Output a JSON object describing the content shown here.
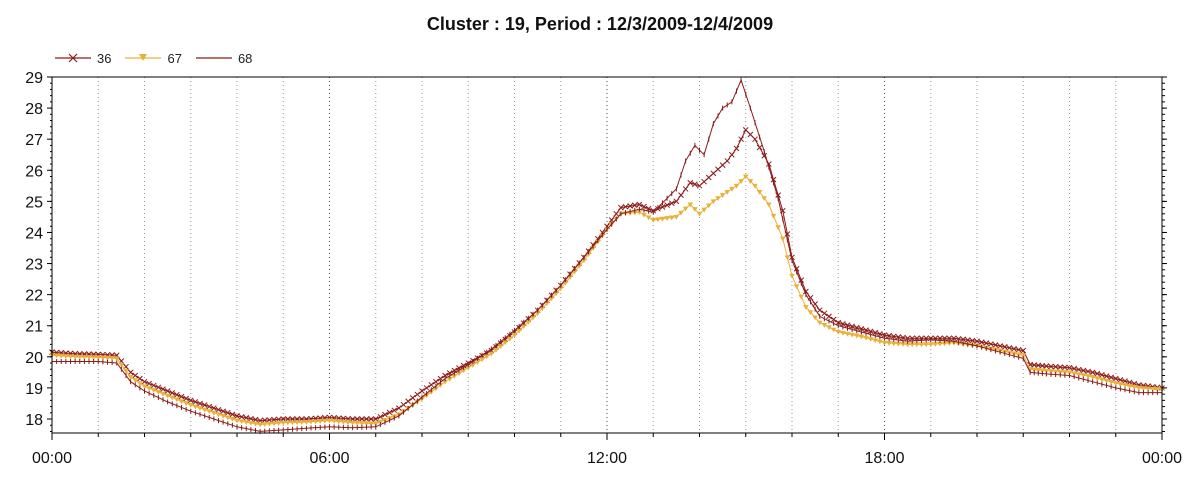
{
  "chart_data": {
    "type": "line",
    "title": "Cluster : 19, Period : 12/3/2009-12/4/2009",
    "xlabel": "",
    "ylabel": "",
    "x_ticks": [
      "00:00",
      "06:00",
      "12:00",
      "18:00",
      "00:00"
    ],
    "x_range_hours": [
      0,
      24
    ],
    "y_ticks": [
      "18",
      "19",
      "20",
      "21",
      "22",
      "23",
      "24",
      "25",
      "26",
      "27",
      "28",
      "29"
    ],
    "ylim": [
      17.55,
      29.0
    ],
    "grid": "vertical dotted every hour",
    "legend_position": "top-left",
    "series": [
      {
        "name": "36",
        "color": "#8b1a1a",
        "marker": "x",
        "points": [
          [
            0,
            20.15
          ],
          [
            0.5,
            20.1
          ],
          [
            1,
            20.08
          ],
          [
            1.4,
            20.05
          ],
          [
            1.7,
            19.5
          ],
          [
            2,
            19.2
          ],
          [
            2.5,
            18.9
          ],
          [
            3,
            18.6
          ],
          [
            3.5,
            18.35
          ],
          [
            4,
            18.1
          ],
          [
            4.5,
            17.95
          ],
          [
            5,
            18.0
          ],
          [
            5.5,
            18.0
          ],
          [
            6,
            18.05
          ],
          [
            6.5,
            18.0
          ],
          [
            7,
            18.0
          ],
          [
            7.5,
            18.35
          ],
          [
            8,
            18.9
          ],
          [
            8.5,
            19.4
          ],
          [
            9,
            19.8
          ],
          [
            9.5,
            20.2
          ],
          [
            10,
            20.8
          ],
          [
            10.5,
            21.5
          ],
          [
            11,
            22.3
          ],
          [
            11.5,
            23.2
          ],
          [
            12,
            24.2
          ],
          [
            12.3,
            24.8
          ],
          [
            12.7,
            24.9
          ],
          [
            13,
            24.7
          ],
          [
            13.5,
            25.0
          ],
          [
            13.8,
            25.6
          ],
          [
            14,
            25.5
          ],
          [
            14.3,
            25.9
          ],
          [
            14.6,
            26.3
          ],
          [
            14.8,
            26.7
          ],
          [
            15,
            27.3
          ],
          [
            15.2,
            27.0
          ],
          [
            15.5,
            26.2
          ],
          [
            15.8,
            24.7
          ],
          [
            16,
            23.2
          ],
          [
            16.3,
            22.1
          ],
          [
            16.6,
            21.5
          ],
          [
            17,
            21.1
          ],
          [
            17.5,
            20.9
          ],
          [
            18,
            20.7
          ],
          [
            18.5,
            20.6
          ],
          [
            19,
            20.6
          ],
          [
            19.5,
            20.6
          ],
          [
            20,
            20.5
          ],
          [
            20.5,
            20.35
          ],
          [
            21,
            20.2
          ],
          [
            21.15,
            19.75
          ],
          [
            21.5,
            19.7
          ],
          [
            22,
            19.65
          ],
          [
            22.5,
            19.5
          ],
          [
            23,
            19.3
          ],
          [
            23.5,
            19.1
          ],
          [
            24,
            19.0
          ]
        ]
      },
      {
        "name": "67",
        "color": "#e8b13a",
        "marker": "triangle-down",
        "points": [
          [
            0,
            20.05
          ],
          [
            0.5,
            20.0
          ],
          [
            1,
            19.98
          ],
          [
            1.4,
            19.95
          ],
          [
            1.7,
            19.35
          ],
          [
            2,
            19.05
          ],
          [
            2.5,
            18.75
          ],
          [
            3,
            18.45
          ],
          [
            3.5,
            18.2
          ],
          [
            4,
            17.95
          ],
          [
            4.5,
            17.82
          ],
          [
            5,
            17.88
          ],
          [
            5.5,
            17.9
          ],
          [
            6,
            17.95
          ],
          [
            6.5,
            17.88
          ],
          [
            7,
            17.85
          ],
          [
            7.5,
            18.15
          ],
          [
            8,
            18.65
          ],
          [
            8.5,
            19.2
          ],
          [
            9,
            19.65
          ],
          [
            9.5,
            20.1
          ],
          [
            10,
            20.7
          ],
          [
            10.5,
            21.4
          ],
          [
            11,
            22.2
          ],
          [
            11.5,
            23.1
          ],
          [
            12,
            24.1
          ],
          [
            12.3,
            24.6
          ],
          [
            12.7,
            24.65
          ],
          [
            13,
            24.4
          ],
          [
            13.5,
            24.5
          ],
          [
            13.8,
            24.9
          ],
          [
            14,
            24.6
          ],
          [
            14.3,
            25.0
          ],
          [
            14.6,
            25.3
          ],
          [
            14.8,
            25.5
          ],
          [
            15,
            25.8
          ],
          [
            15.2,
            25.5
          ],
          [
            15.5,
            24.9
          ],
          [
            15.8,
            23.8
          ],
          [
            16,
            22.6
          ],
          [
            16.3,
            21.6
          ],
          [
            16.6,
            21.1
          ],
          [
            17,
            20.8
          ],
          [
            17.5,
            20.65
          ],
          [
            18,
            20.45
          ],
          [
            18.5,
            20.4
          ],
          [
            19,
            20.4
          ],
          [
            19.5,
            20.45
          ],
          [
            20,
            20.35
          ],
          [
            20.5,
            20.2
          ],
          [
            21,
            20.05
          ],
          [
            21.15,
            19.6
          ],
          [
            21.5,
            19.55
          ],
          [
            22,
            19.5
          ],
          [
            22.5,
            19.35
          ],
          [
            23,
            19.15
          ],
          [
            23.5,
            19.0
          ],
          [
            24,
            18.95
          ]
        ]
      },
      {
        "name": "68",
        "color": "#8b1a1a",
        "marker": "plus",
        "points": [
          [
            0,
            19.85
          ],
          [
            0.5,
            19.85
          ],
          [
            1,
            19.85
          ],
          [
            1.4,
            19.8
          ],
          [
            1.7,
            19.2
          ],
          [
            2,
            18.9
          ],
          [
            2.5,
            18.55
          ],
          [
            3,
            18.25
          ],
          [
            3.5,
            18.0
          ],
          [
            4,
            17.75
          ],
          [
            4.5,
            17.6
          ],
          [
            5,
            17.65
          ],
          [
            5.5,
            17.7
          ],
          [
            6,
            17.75
          ],
          [
            6.5,
            17.72
          ],
          [
            7,
            17.75
          ],
          [
            7.5,
            18.1
          ],
          [
            8,
            18.7
          ],
          [
            8.5,
            19.3
          ],
          [
            9,
            19.75
          ],
          [
            9.5,
            20.25
          ],
          [
            10,
            20.85
          ],
          [
            10.5,
            21.5
          ],
          [
            11,
            22.3
          ],
          [
            11.5,
            23.2
          ],
          [
            12,
            24.1
          ],
          [
            12.3,
            24.6
          ],
          [
            12.7,
            24.75
          ],
          [
            13,
            24.65
          ],
          [
            13.5,
            25.4
          ],
          [
            13.7,
            26.3
          ],
          [
            13.9,
            26.8
          ],
          [
            14.1,
            26.5
          ],
          [
            14.3,
            27.5
          ],
          [
            14.5,
            28.0
          ],
          [
            14.7,
            28.2
          ],
          [
            14.9,
            28.9
          ],
          [
            15.1,
            28.0
          ],
          [
            15.4,
            26.6
          ],
          [
            15.7,
            25.1
          ],
          [
            16,
            23.1
          ],
          [
            16.3,
            22.0
          ],
          [
            16.6,
            21.3
          ],
          [
            17,
            21.0
          ],
          [
            17.5,
            20.8
          ],
          [
            18,
            20.6
          ],
          [
            18.5,
            20.5
          ],
          [
            19,
            20.55
          ],
          [
            19.5,
            20.5
          ],
          [
            20,
            20.35
          ],
          [
            20.5,
            20.15
          ],
          [
            21,
            19.95
          ],
          [
            21.15,
            19.5
          ],
          [
            21.5,
            19.45
          ],
          [
            22,
            19.4
          ],
          [
            22.5,
            19.2
          ],
          [
            23,
            19.0
          ],
          [
            23.5,
            18.85
          ],
          [
            24,
            18.85
          ]
        ]
      }
    ]
  }
}
